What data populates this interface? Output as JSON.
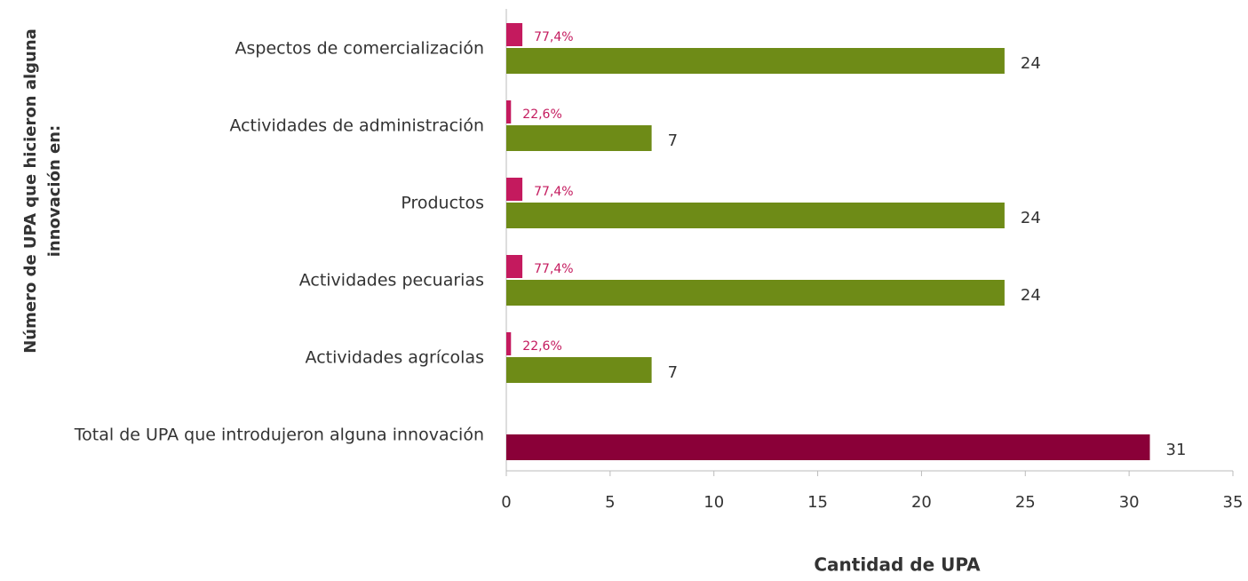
{
  "chart_data": {
    "type": "bar",
    "orientation": "horizontal",
    "categories": [
      "Aspectos de comercialización",
      "Actividades de administración",
      "Productos",
      "Actividades pecuarias",
      "Actividades agrícolas",
      "Total de UPA que introdujeron alguna innovación"
    ],
    "series": [
      {
        "color": "#c41a5e",
        "values": [
          0.774,
          0.226,
          0.774,
          0.774,
          0.226,
          null
        ],
        "value_labels": [
          "77,4%",
          "22,6%",
          "77,4%",
          "77,4%",
          "22,6%",
          null
        ]
      },
      {
        "color": "#6e8b17",
        "values": [
          24,
          7,
          24,
          24,
          7,
          null
        ]
      },
      {
        "color": "#8a0038",
        "values": [
          null,
          null,
          null,
          null,
          null,
          31
        ]
      }
    ],
    "xlabel": "Cantidad de UPA",
    "ylabel": [
      "Número de UPA que hicieron alguna",
      "innovación en:"
    ],
    "xlim": [
      0,
      35
    ],
    "xticks": [
      0,
      5,
      10,
      15,
      20,
      25,
      30,
      35
    ]
  }
}
